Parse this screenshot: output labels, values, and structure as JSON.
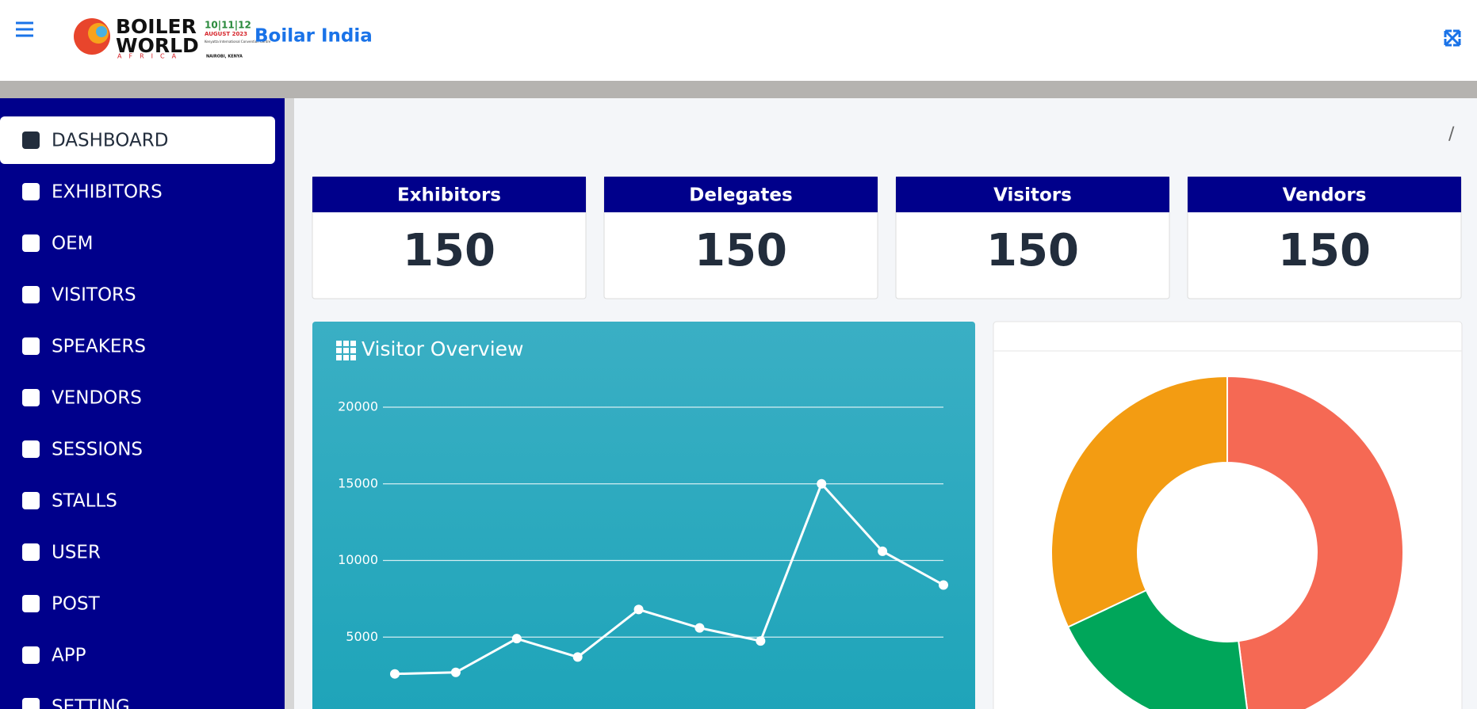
{
  "header": {
    "brand": "Boilar India",
    "logo": {
      "line1": "BOILER",
      "line2": "WORLD",
      "line3": "AFRICA",
      "dates": "10|11|12",
      "month": "AUGUST 2023",
      "venue": "Kenyatta International Convention Centre",
      "city": "NAIROBI, KENYA"
    }
  },
  "breadcrumb": "/",
  "menu": [
    "DASHBOARD",
    "EXHIBITORS",
    "OEM",
    "VISITORS",
    "SPEAKERS",
    "VENDORS",
    "SESSIONS",
    "STALLS",
    "USER",
    "POST",
    "APP",
    "SETTING"
  ],
  "stats": [
    {
      "title": "Exhibitors",
      "value": 150
    },
    {
      "title": "Delegates",
      "value": 150
    },
    {
      "title": "Visitors",
      "value": 150
    },
    {
      "title": "Vendors",
      "value": 150
    }
  ],
  "chart_data": [
    {
      "type": "line",
      "title": "Visitor Overview",
      "values": [
        2600,
        2700,
        4900,
        3700,
        6800,
        5600,
        4750,
        15000,
        10600,
        8400
      ],
      "color": "#ffffff",
      "ylim": [
        0,
        20000
      ],
      "yticks": [
        5000,
        10000,
        15000,
        20000
      ],
      "grid": true
    },
    {
      "type": "pie",
      "donut": true,
      "values": [
        48,
        20,
        32
      ],
      "colors": [
        "#f56954",
        "#00a65a",
        "#f39c12"
      ]
    }
  ]
}
